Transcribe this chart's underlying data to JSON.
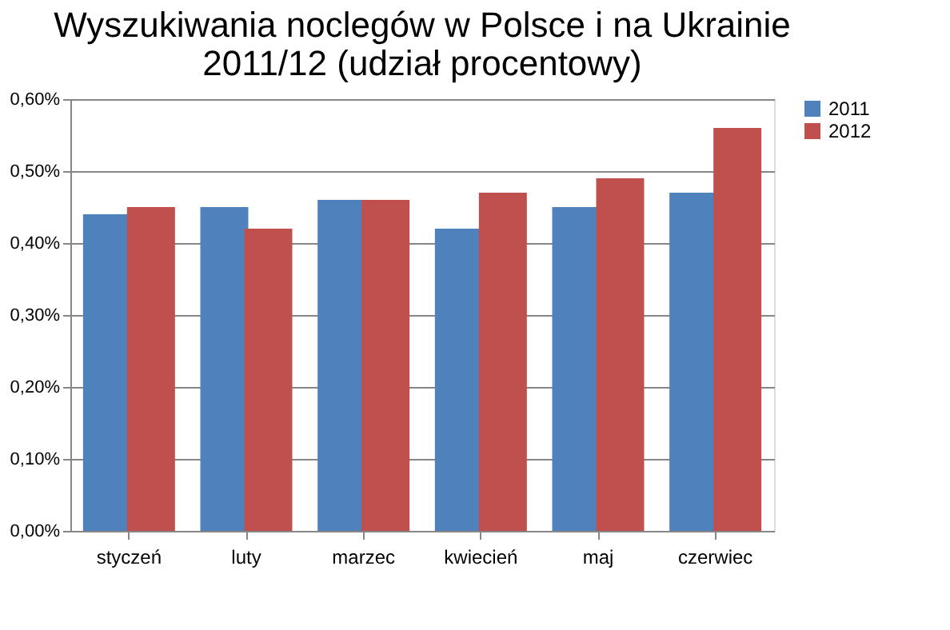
{
  "chart_data": {
    "type": "bar",
    "title": "Wyszukiwania noclegów w Polsce i na Ukrainie\n2011/12 (udział procentowy)",
    "categories": [
      "styczeń",
      "luty",
      "marzec",
      "kwiecień",
      "maj",
      "czerwiec"
    ],
    "series": [
      {
        "name": "2011",
        "color": "#4f81bd",
        "values": [
          0.44,
          0.45,
          0.46,
          0.42,
          0.45,
          0.47
        ]
      },
      {
        "name": "2012",
        "color": "#c0504d",
        "values": [
          0.45,
          0.42,
          0.46,
          0.47,
          0.49,
          0.56
        ]
      }
    ],
    "ylim": [
      0,
      0.6
    ],
    "yticks": [
      {
        "value": 0,
        "label": "0,00%"
      },
      {
        "value": 0.1,
        "label": "0,10%"
      },
      {
        "value": 0.2,
        "label": "0,20%"
      },
      {
        "value": 0.3,
        "label": "0,30%"
      },
      {
        "value": 0.4,
        "label": "0,40%"
      },
      {
        "value": 0.5,
        "label": "0,50%"
      },
      {
        "value": 0.6,
        "label": "0,60%"
      }
    ],
    "grid": "y",
    "legend": "right"
  }
}
